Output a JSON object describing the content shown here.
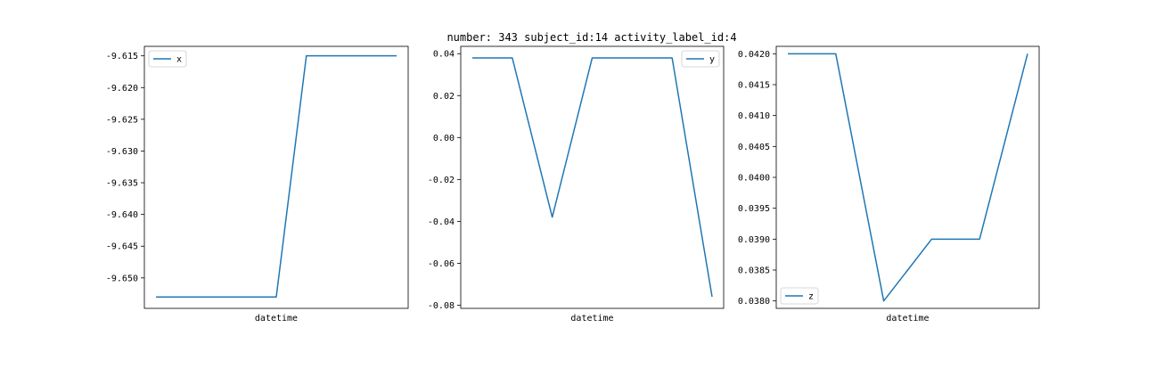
{
  "suptitle": "number: 343 subject_id:14 activity_label_id:4",
  "line_color": "#1f77b4",
  "chart_data": [
    {
      "type": "line",
      "xlabel": "datetime",
      "ylim": [
        -9.6548,
        -9.6135
      ],
      "ticks": [
        {
          "v": -9.615,
          "label": "-9.615"
        },
        {
          "v": -9.62,
          "label": "-9.620"
        },
        {
          "v": -9.625,
          "label": "-9.625"
        },
        {
          "v": -9.63,
          "label": "-9.630"
        },
        {
          "v": -9.635,
          "label": "-9.635"
        },
        {
          "v": -9.64,
          "label": "-9.640"
        },
        {
          "v": -9.645,
          "label": "-9.645"
        },
        {
          "v": -9.65,
          "label": "-9.650"
        }
      ],
      "legend_position": "top-left",
      "series": [
        {
          "name": "x",
          "values": [
            -9.653,
            -9.653,
            -9.653,
            -9.653,
            -9.653,
            -9.615,
            -9.615,
            -9.615,
            -9.615
          ]
        }
      ]
    },
    {
      "type": "line",
      "xlabel": "datetime",
      "ylim": [
        -0.0815,
        0.0435
      ],
      "ticks": [
        {
          "v": 0.04,
          "label": "0.04"
        },
        {
          "v": 0.02,
          "label": "0.02"
        },
        {
          "v": 0.0,
          "label": "0.00"
        },
        {
          "v": -0.02,
          "label": "-0.02"
        },
        {
          "v": -0.04,
          "label": "-0.04"
        },
        {
          "v": -0.06,
          "label": "-0.06"
        },
        {
          "v": -0.08,
          "label": "-0.08"
        }
      ],
      "legend_position": "top-right",
      "series": [
        {
          "name": "y",
          "values": [
            0.038,
            0.038,
            -0.038,
            0.038,
            0.038,
            0.038,
            -0.076
          ]
        }
      ]
    },
    {
      "type": "line",
      "xlabel": "datetime",
      "ylim": [
        0.03788,
        0.04212
      ],
      "ticks": [
        {
          "v": 0.042,
          "label": "0.0420"
        },
        {
          "v": 0.0415,
          "label": "0.0415"
        },
        {
          "v": 0.041,
          "label": "0.0410"
        },
        {
          "v": 0.0405,
          "label": "0.0405"
        },
        {
          "v": 0.04,
          "label": "0.0400"
        },
        {
          "v": 0.0395,
          "label": "0.0395"
        },
        {
          "v": 0.039,
          "label": "0.0390"
        },
        {
          "v": 0.0385,
          "label": "0.0385"
        },
        {
          "v": 0.038,
          "label": "0.0380"
        }
      ],
      "legend_position": "bottom-left",
      "series": [
        {
          "name": "z",
          "values": [
            0.042,
            0.042,
            0.038,
            0.039,
            0.039,
            0.042
          ]
        }
      ]
    }
  ]
}
